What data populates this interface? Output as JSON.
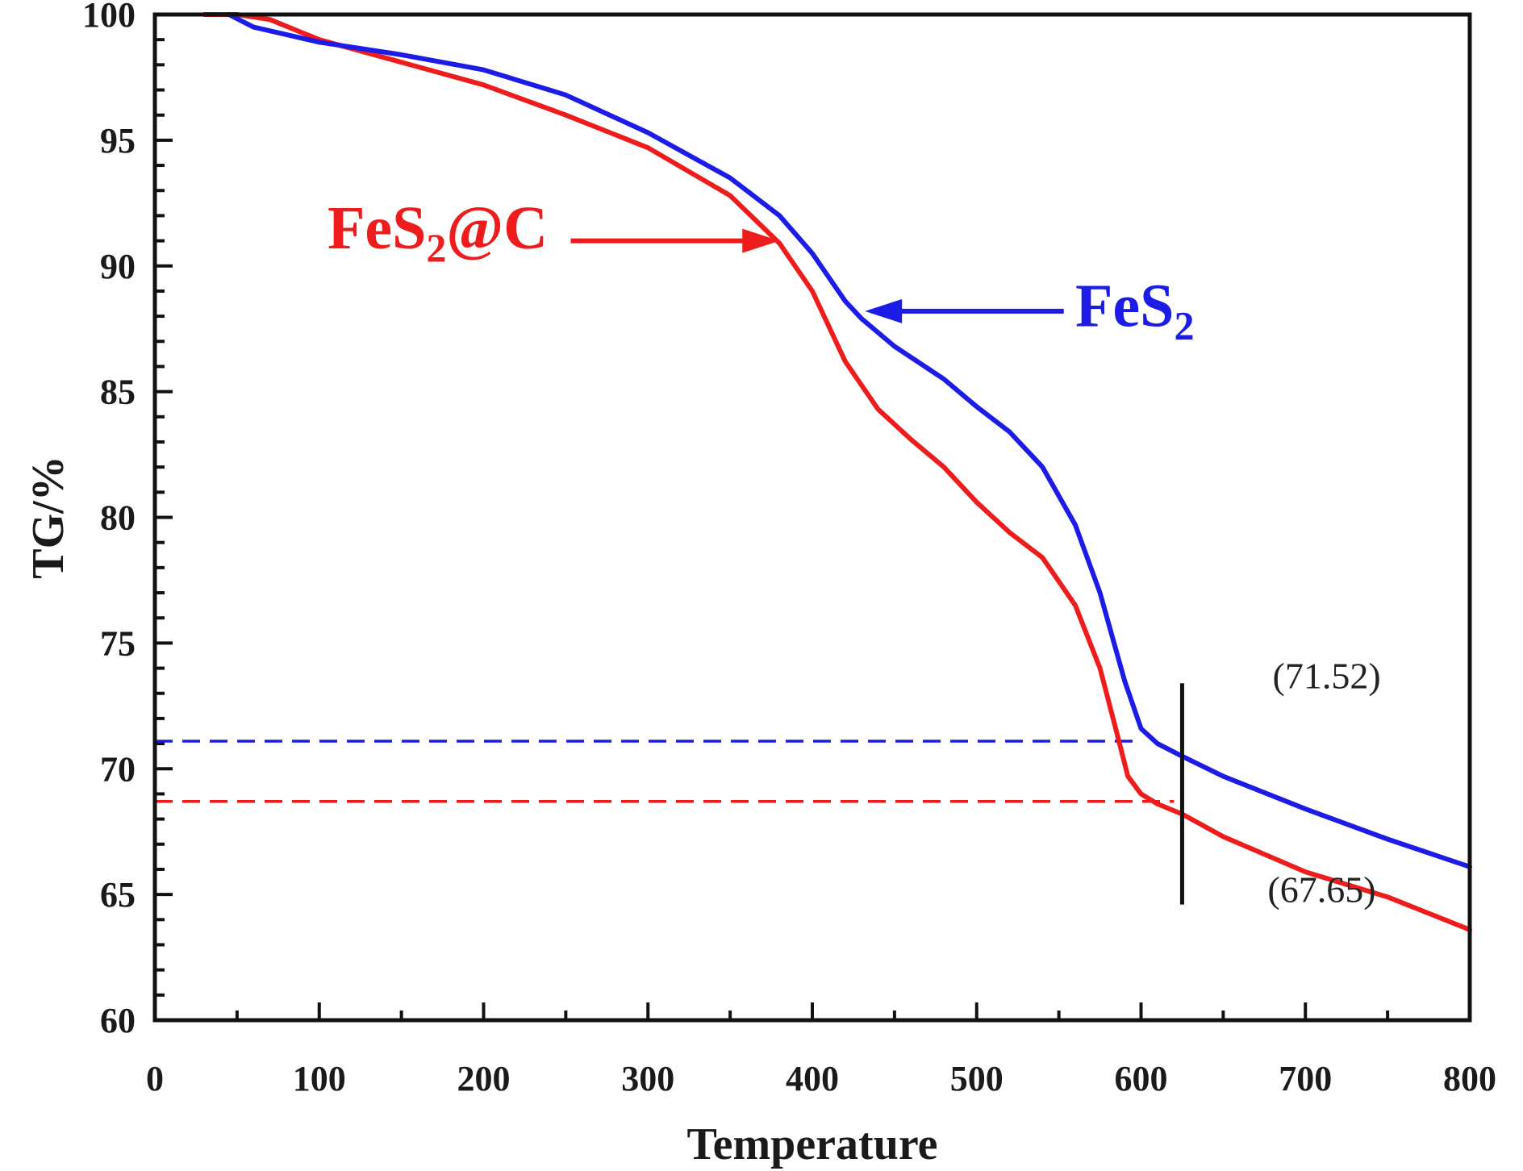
{
  "chart_data": {
    "type": "line",
    "title": "",
    "xlabel": "Temperature",
    "ylabel": "TG/%",
    "xlim": [
      0,
      800
    ],
    "ylim": [
      60,
      100
    ],
    "xticks": [
      0,
      100,
      200,
      300,
      400,
      500,
      600,
      700,
      800
    ],
    "yticks": [
      60,
      65,
      70,
      75,
      80,
      85,
      90,
      95,
      100
    ],
    "grid": false,
    "series": [
      {
        "name": "FeS2@C",
        "label_main": "FeS",
        "label_sub": "2",
        "label_tail": "@C",
        "color": "#ee1c1c",
        "x": [
          30,
          50,
          70,
          100,
          150,
          200,
          250,
          300,
          350,
          380,
          400,
          420,
          440,
          460,
          480,
          500,
          520,
          540,
          560,
          575,
          585,
          592,
          600,
          610,
          625,
          650,
          700,
          750,
          800
        ],
        "y": [
          100.0,
          100.0,
          99.8,
          99.0,
          98.1,
          97.2,
          96.0,
          94.7,
          92.8,
          90.9,
          89.0,
          86.2,
          84.3,
          83.1,
          82.0,
          80.6,
          79.4,
          78.4,
          76.5,
          74.0,
          71.5,
          69.7,
          69.0,
          68.6,
          68.2,
          67.3,
          65.9,
          64.9,
          63.6
        ]
      },
      {
        "name": "FeS2",
        "label_main": "FeS",
        "label_sub": "2",
        "label_tail": "",
        "color": "#1c1ce6",
        "x": [
          45,
          60,
          80,
          100,
          150,
          200,
          250,
          300,
          350,
          380,
          400,
          420,
          430,
          450,
          480,
          500,
          520,
          540,
          560,
          575,
          590,
          600,
          610,
          625,
          650,
          700,
          750,
          800
        ],
        "y": [
          100.0,
          99.5,
          99.2,
          98.9,
          98.4,
          97.8,
          96.8,
          95.3,
          93.5,
          92.0,
          90.5,
          88.6,
          87.9,
          86.8,
          85.5,
          84.4,
          83.4,
          82.0,
          79.7,
          77.0,
          73.5,
          71.6,
          71.0,
          70.5,
          69.7,
          68.4,
          67.2,
          66.1
        ]
      }
    ],
    "reference_lines": [
      {
        "y": 71.1,
        "color": "#1c1ce6",
        "x_from": 0,
        "x_to": 600
      },
      {
        "y": 68.7,
        "color": "#ee1c1c",
        "x_from": 0,
        "x_to": 620
      }
    ],
    "marker_line": {
      "x": 625,
      "y_from": 64.6,
      "y_to": 73.4
    },
    "annotations": [
      {
        "text": "(71.52)",
        "x": 680,
        "y": 73.2
      },
      {
        "text": "(67.65)",
        "x": 677,
        "y": 64.7
      }
    ],
    "arrows": [
      {
        "series": "FeS2@C",
        "text_x": 105,
        "text_y": 90.7,
        "from_x": 253,
        "from_y": 91.0,
        "to_x": 380,
        "to_y": 91.0
      },
      {
        "series": "FeS2",
        "text_x": 560,
        "text_y": 87.6,
        "from_x": 553,
        "from_y": 88.2,
        "to_x": 432,
        "to_y": 88.2
      }
    ]
  }
}
